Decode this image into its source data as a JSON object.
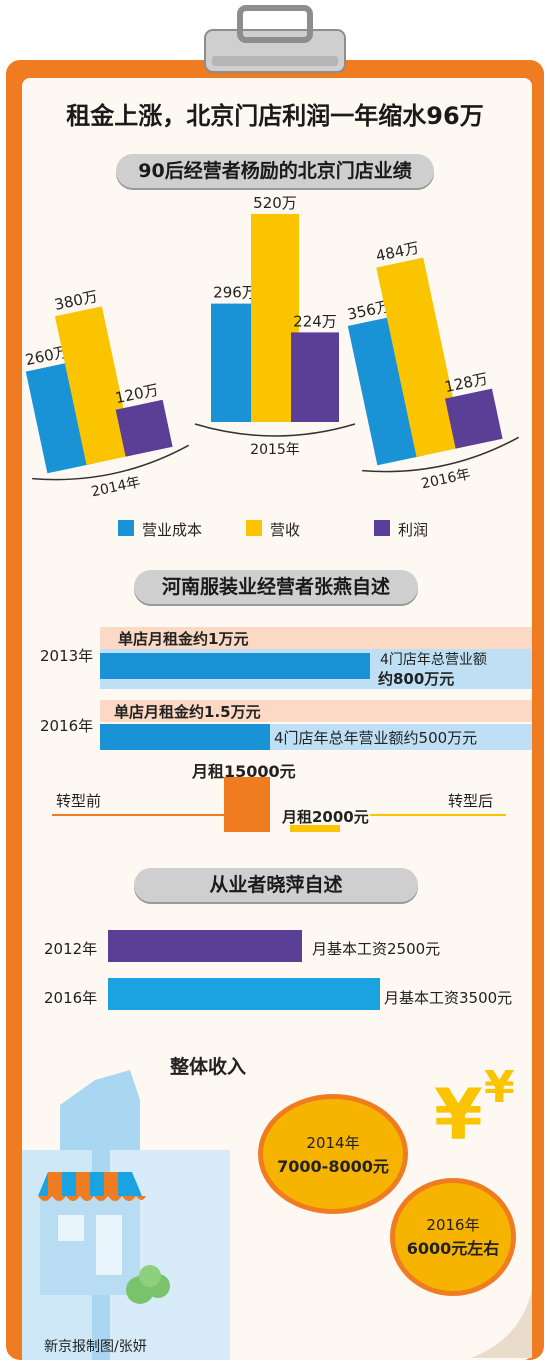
{
  "headline": "租金上涨，北京门店利润一年缩水96万",
  "section1": {
    "title": "90后经营者杨励的北京门店业绩"
  },
  "chart_data": [
    {
      "type": "bar",
      "title": "90后经营者杨励的北京门店业绩",
      "categories": [
        "2014年",
        "2015年",
        "2016年"
      ],
      "series": [
        {
          "name": "营业成本",
          "values": [
            260,
            296,
            356
          ],
          "labels": [
            "260万",
            "296万",
            "356万"
          ],
          "color": "#1a93d6"
        },
        {
          "name": "营收",
          "values": [
            380,
            520,
            484
          ],
          "labels": [
            "380万",
            "520万",
            "484万"
          ],
          "color": "#fbc400"
        },
        {
          "name": "利润",
          "values": [
            120,
            224,
            128
          ],
          "labels": [
            "120万",
            "224万",
            "128万"
          ],
          "color": "#5b3e96"
        }
      ],
      "legend_position": "bottom"
    },
    {
      "type": "bar",
      "title": "从业者晓萍自述",
      "orientation": "horizontal",
      "categories": [
        "2012年",
        "2016年"
      ],
      "values": [
        2500,
        3500
      ],
      "labels": [
        "月基本工资2500元",
        "月基本工资3500元"
      ],
      "colors": [
        "#5b3e96",
        "#1aa3e0"
      ]
    }
  ],
  "section2": {
    "title": "河南服装业经营者张燕自述",
    "rows": [
      {
        "year": "2013年",
        "rent_text": "单店月租金约1万元",
        "revenue_line1": "4门店年总营业额",
        "revenue_line2": "约800万元"
      },
      {
        "year": "2016年",
        "rent_text": "单店月租金约1.5万元",
        "revenue_text": "4门店年总年营业额约500万元"
      }
    ],
    "transform": {
      "before_label": "转型前",
      "after_label": "转型后",
      "before_rent": "月租15000元",
      "after_rent": "月租2000元",
      "before_value": 15000,
      "after_value": 2000
    }
  },
  "section3": {
    "title": "从业者晓萍自述",
    "overall_title": "整体收入",
    "coins": [
      {
        "year": "2014年",
        "amount": "7000-8000元"
      },
      {
        "year": "2016年",
        "amount": "6000元左右"
      }
    ]
  },
  "credit": "新京报制图/张妍",
  "colors": {
    "board_orange": "#f07c22",
    "paper": "#fdf8f1",
    "blue": "#1a93d6",
    "yellow": "#fbc400",
    "purple": "#5b3e96",
    "light_blue": "#bfe0f4",
    "peach": "#fbd9c4",
    "coin": "#f6b400"
  }
}
